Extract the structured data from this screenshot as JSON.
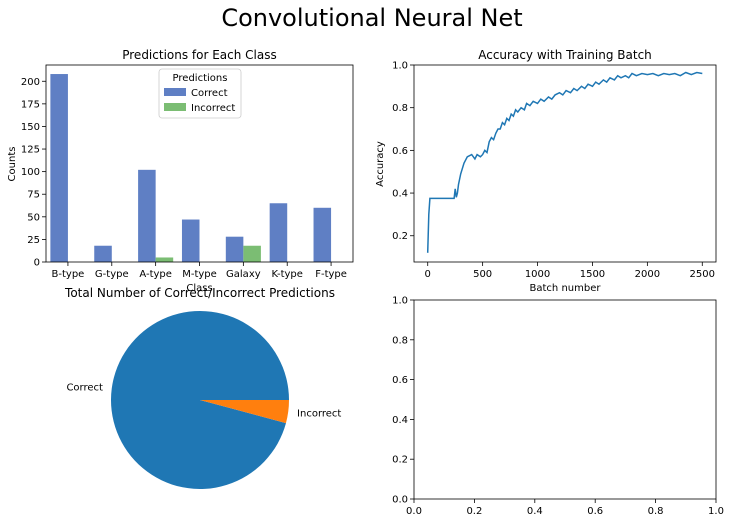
{
  "figure": {
    "suptitle": "Convolutional Neural Net"
  },
  "chart_data": [
    {
      "type": "bar",
      "title": "Predictions for Each Class",
      "xlabel": "Class",
      "ylabel": "Counts",
      "categories": [
        "B-type",
        "G-type",
        "A-type",
        "M-type",
        "Galaxy",
        "K-type",
        "F-type"
      ],
      "ylim": [
        0,
        218
      ],
      "yticks": [
        0,
        25,
        50,
        75,
        100,
        125,
        150,
        175,
        200
      ],
      "series": [
        {
          "name": "Correct",
          "color": "#5f7fc4",
          "values": [
            208,
            18,
            102,
            47,
            28,
            65,
            60
          ]
        },
        {
          "name": "Incorrect",
          "color": "#7bbd73",
          "values": [
            0,
            0,
            5,
            0,
            18,
            0,
            0
          ]
        }
      ],
      "legend": {
        "title": "Predictions",
        "position": "top-center"
      }
    },
    {
      "type": "line",
      "title": "Accuracy with Training Batch",
      "xlabel": "Batch number",
      "ylabel": "Accuracy",
      "xlim": [
        -125,
        2625
      ],
      "ylim": [
        0.077,
        1.0
      ],
      "xticks": [
        0,
        500,
        1000,
        1500,
        2000,
        2500
      ],
      "yticks": [
        0.2,
        0.4,
        0.6,
        0.8,
        1.0
      ],
      "ytick_labels": [
        "0.2",
        "0.4",
        "0.6",
        "0.8",
        "1.0"
      ],
      "series": [
        {
          "color": "#1f77b4",
          "x": [
            0,
            10,
            20,
            50,
            100,
            150,
            200,
            240,
            250,
            260,
            270,
            280,
            300,
            330,
            360,
            400,
            430,
            450,
            480,
            500,
            520,
            540,
            560,
            580,
            600,
            620,
            640,
            660,
            680,
            700,
            720,
            740,
            760,
            780,
            800,
            820,
            850,
            880,
            900,
            930,
            960,
            1000,
            1030,
            1060,
            1100,
            1130,
            1160,
            1200,
            1230,
            1260,
            1300,
            1330,
            1360,
            1400,
            1430,
            1460,
            1500,
            1530,
            1560,
            1600,
            1630,
            1660,
            1700,
            1730,
            1760,
            1800,
            1830,
            1860,
            1900,
            1950,
            2000,
            2050,
            2100,
            2150,
            2200,
            2250,
            2300,
            2350,
            2400,
            2450,
            2500
          ],
          "y": [
            0.12,
            0.3,
            0.375,
            0.375,
            0.375,
            0.375,
            0.375,
            0.375,
            0.42,
            0.38,
            0.4,
            0.44,
            0.49,
            0.54,
            0.57,
            0.58,
            0.56,
            0.58,
            0.57,
            0.58,
            0.6,
            0.59,
            0.64,
            0.66,
            0.65,
            0.68,
            0.7,
            0.7,
            0.73,
            0.72,
            0.75,
            0.74,
            0.77,
            0.76,
            0.79,
            0.78,
            0.8,
            0.79,
            0.82,
            0.81,
            0.83,
            0.82,
            0.84,
            0.83,
            0.85,
            0.84,
            0.86,
            0.87,
            0.86,
            0.88,
            0.87,
            0.89,
            0.88,
            0.9,
            0.89,
            0.91,
            0.9,
            0.92,
            0.91,
            0.93,
            0.92,
            0.94,
            0.93,
            0.95,
            0.94,
            0.95,
            0.94,
            0.96,
            0.95,
            0.96,
            0.955,
            0.96,
            0.95,
            0.96,
            0.955,
            0.96,
            0.95,
            0.965,
            0.955,
            0.965,
            0.96
          ]
        }
      ]
    },
    {
      "type": "pie",
      "title": "Total Number of Correct/Incorrect Predictions",
      "slices": [
        {
          "label": "Correct",
          "value": 528,
          "color": "#1f77b4"
        },
        {
          "label": "Incorrect",
          "value": 23,
          "color": "#ff7f0e"
        }
      ]
    },
    {
      "type": "line",
      "title": "",
      "xlim": [
        0,
        1
      ],
      "ylim": [
        0,
        1
      ],
      "xticks": [
        0.0,
        0.2,
        0.4,
        0.6,
        0.8,
        1.0
      ],
      "xtick_labels": [
        "0.0",
        "0.2",
        "0.4",
        "0.6",
        "0.8",
        "1.0"
      ],
      "yticks": [
        0.0,
        0.2,
        0.4,
        0.6,
        0.8,
        1.0
      ],
      "ytick_labels": [
        "0.0",
        "0.2",
        "0.4",
        "0.6",
        "0.8",
        "1.0"
      ],
      "series": []
    }
  ]
}
